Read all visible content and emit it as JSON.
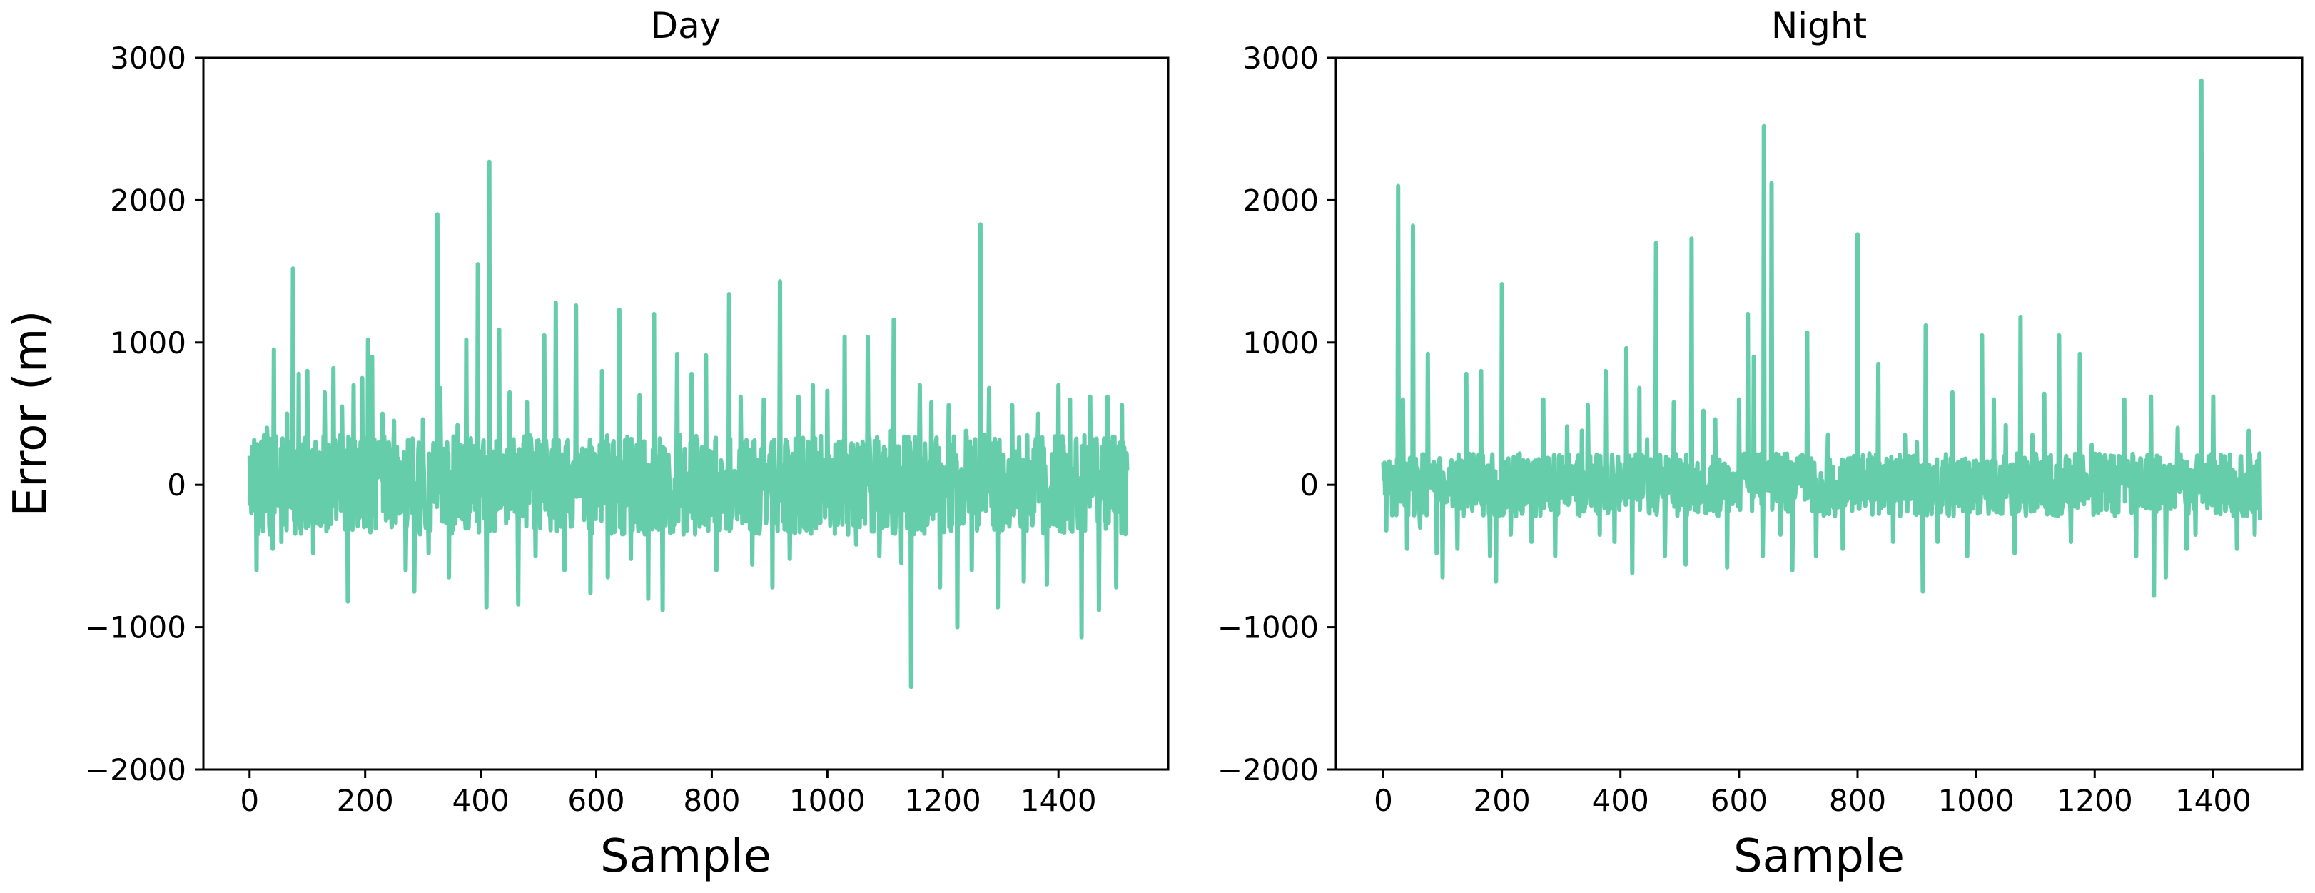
{
  "figure": {
    "ylabel": "Error (m)"
  },
  "chart_data": [
    {
      "type": "line",
      "title": "Day",
      "xlabel": "Sample",
      "ylabel": "Error (m)",
      "xlim": [
        -80,
        1590
      ],
      "ylim": [
        -2000,
        3000
      ],
      "x_ticks": [
        0,
        200,
        400,
        600,
        800,
        1000,
        1200,
        1400
      ],
      "y_ticks": [
        -2000,
        -1000,
        0,
        1000,
        2000,
        3000
      ],
      "x_tick_labels": [
        "0",
        "200",
        "400",
        "600",
        "800",
        "1000",
        "1200",
        "1400"
      ],
      "y_tick_labels": [
        "−2000",
        "−1000",
        "0",
        "1000",
        "2000",
        "3000"
      ],
      "grid": false,
      "series": [
        {
          "color": "#66cdaa",
          "n_samples": 1520,
          "noise_range": [
            -350,
            350
          ],
          "spikes": [
            [
              5,
              180
            ],
            [
              12,
              -600
            ],
            [
              20,
              300
            ],
            [
              30,
              400
            ],
            [
              40,
              -450
            ],
            [
              42,
              950
            ],
            [
              55,
              -400
            ],
            [
              65,
              500
            ],
            [
              75,
              1520
            ],
            [
              85,
              780
            ],
            [
              100,
              800
            ],
            [
              110,
              -480
            ],
            [
              130,
              650
            ],
            [
              145,
              820
            ],
            [
              160,
              550
            ],
            [
              170,
              -820
            ],
            [
              180,
              700
            ],
            [
              195,
              750
            ],
            [
              205,
              1020
            ],
            [
              212,
              900
            ],
            [
              230,
              500
            ],
            [
              250,
              450
            ],
            [
              270,
              -600
            ],
            [
              285,
              -750
            ],
            [
              300,
              460
            ],
            [
              310,
              -480
            ],
            [
              325,
              1900
            ],
            [
              330,
              680
            ],
            [
              345,
              -650
            ],
            [
              360,
              420
            ],
            [
              375,
              1020
            ],
            [
              395,
              1550
            ],
            [
              410,
              -860
            ],
            [
              415,
              2270
            ],
            [
              432,
              1090
            ],
            [
              450,
              650
            ],
            [
              465,
              -840
            ],
            [
              480,
              580
            ],
            [
              495,
              -500
            ],
            [
              510,
              1050
            ],
            [
              530,
              1280
            ],
            [
              545,
              -600
            ],
            [
              565,
              1260
            ],
            [
              590,
              -760
            ],
            [
              610,
              800
            ],
            [
              620,
              -650
            ],
            [
              640,
              1230
            ],
            [
              660,
              -520
            ],
            [
              675,
              630
            ],
            [
              690,
              -800
            ],
            [
              700,
              1200
            ],
            [
              715,
              -880
            ],
            [
              740,
              920
            ],
            [
              765,
              780
            ],
            [
              790,
              910
            ],
            [
              808,
              -600
            ],
            [
              830,
              1340
            ],
            [
              850,
              620
            ],
            [
              870,
              -560
            ],
            [
              890,
              600
            ],
            [
              905,
              -720
            ],
            [
              918,
              1430
            ],
            [
              935,
              -520
            ],
            [
              950,
              620
            ],
            [
              975,
              700
            ],
            [
              1000,
              660
            ],
            [
              1030,
              1040
            ],
            [
              1050,
              -420
            ],
            [
              1070,
              1040
            ],
            [
              1090,
              -500
            ],
            [
              1110,
              380
            ],
            [
              1115,
              1160
            ],
            [
              1128,
              -550
            ],
            [
              1145,
              -1420
            ],
            [
              1160,
              700
            ],
            [
              1180,
              580
            ],
            [
              1195,
              -720
            ],
            [
              1210,
              560
            ],
            [
              1225,
              -1000
            ],
            [
              1240,
              380
            ],
            [
              1250,
              -600
            ],
            [
              1265,
              1830
            ],
            [
              1280,
              680
            ],
            [
              1295,
              -860
            ],
            [
              1320,
              560
            ],
            [
              1340,
              -680
            ],
            [
              1365,
              500
            ],
            [
              1380,
              -700
            ],
            [
              1400,
              700
            ],
            [
              1420,
              600
            ],
            [
              1440,
              -1070
            ],
            [
              1455,
              620
            ],
            [
              1470,
              -880
            ],
            [
              1485,
              620
            ],
            [
              1500,
              -720
            ],
            [
              1510,
              560
            ]
          ],
          "end_value": 100
        }
      ]
    },
    {
      "type": "line",
      "title": "Night",
      "xlabel": "Sample",
      "ylabel": "",
      "xlim": [
        -80,
        1550
      ],
      "ylim": [
        -2000,
        3000
      ],
      "x_ticks": [
        0,
        200,
        400,
        600,
        800,
        1000,
        1200,
        1400
      ],
      "y_ticks": [
        -2000,
        -1000,
        0,
        1000,
        2000,
        3000
      ],
      "x_tick_labels": [
        "0",
        "200",
        "400",
        "600",
        "800",
        "1000",
        "1200",
        "1400"
      ],
      "y_tick_labels": [
        "−2000",
        "−1000",
        "0",
        "1000",
        "2000",
        "3000"
      ],
      "grid": false,
      "series": [
        {
          "color": "#66cdaa",
          "n_samples": 1480,
          "noise_range": [
            -220,
            220
          ],
          "spikes": [
            [
              5,
              -320
            ],
            [
              12,
              40
            ],
            [
              25,
              2100
            ],
            [
              33,
              600
            ],
            [
              40,
              -450
            ],
            [
              50,
              1820
            ],
            [
              62,
              -300
            ],
            [
              75,
              920
            ],
            [
              90,
              -480
            ],
            [
              100,
              -650
            ],
            [
              125,
              -450
            ],
            [
              140,
              780
            ],
            [
              165,
              800
            ],
            [
              180,
              -500
            ],
            [
              190,
              -680
            ],
            [
              200,
              1410
            ],
            [
              215,
              -350
            ],
            [
              230,
              220
            ],
            [
              250,
              -400
            ],
            [
              270,
              600
            ],
            [
              290,
              -500
            ],
            [
              310,
              410
            ],
            [
              335,
              380
            ],
            [
              345,
              560
            ],
            [
              365,
              -350
            ],
            [
              375,
              800
            ],
            [
              390,
              -400
            ],
            [
              410,
              960
            ],
            [
              420,
              -620
            ],
            [
              432,
              680
            ],
            [
              445,
              320
            ],
            [
              460,
              1700
            ],
            [
              475,
              -500
            ],
            [
              490,
              580
            ],
            [
              510,
              -560
            ],
            [
              520,
              1730
            ],
            [
              540,
              520
            ],
            [
              560,
              460
            ],
            [
              580,
              -580
            ],
            [
              600,
              600
            ],
            [
              615,
              1200
            ],
            [
              625,
              900
            ],
            [
              640,
              -500
            ],
            [
              642,
              2520
            ],
            [
              655,
              2120
            ],
            [
              670,
              -350
            ],
            [
              690,
              -600
            ],
            [
              715,
              1070
            ],
            [
              730,
              -500
            ],
            [
              750,
              350
            ],
            [
              775,
              -450
            ],
            [
              800,
              1760
            ],
            [
              820,
              220
            ],
            [
              835,
              850
            ],
            [
              860,
              -400
            ],
            [
              880,
              350
            ],
            [
              900,
              300
            ],
            [
              910,
              -750
            ],
            [
              915,
              1120
            ],
            [
              935,
              -400
            ],
            [
              960,
              650
            ],
            [
              985,
              -500
            ],
            [
              1010,
              1050
            ],
            [
              1030,
              600
            ],
            [
              1050,
              420
            ],
            [
              1065,
              -480
            ],
            [
              1075,
              1180
            ],
            [
              1095,
              350
            ],
            [
              1115,
              640
            ],
            [
              1140,
              1050
            ],
            [
              1160,
              -400
            ],
            [
              1175,
              920
            ],
            [
              1195,
              280
            ],
            [
              1210,
              200
            ],
            [
              1250,
              600
            ],
            [
              1270,
              -500
            ],
            [
              1295,
              620
            ],
            [
              1300,
              -780
            ],
            [
              1320,
              -650
            ],
            [
              1340,
              400
            ],
            [
              1355,
              -450
            ],
            [
              1370,
              -350
            ],
            [
              1380,
              2840
            ],
            [
              1392,
              200
            ],
            [
              1400,
              620
            ],
            [
              1420,
              -180
            ],
            [
              1440,
              -450
            ],
            [
              1460,
              380
            ],
            [
              1470,
              -350
            ],
            [
              1478,
              220
            ]
          ],
          "end_value": -250
        }
      ]
    }
  ]
}
